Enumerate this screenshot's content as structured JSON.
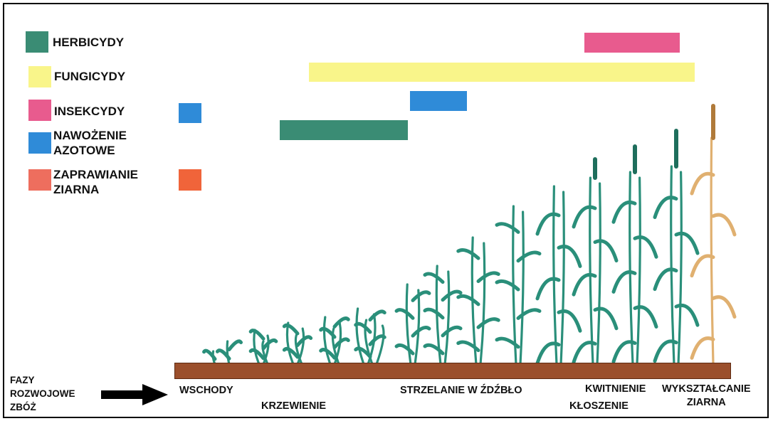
{
  "legend": [
    {
      "label": "HERBICYDY",
      "color": "#3a8c74"
    },
    {
      "label": "FUNGICYDY",
      "color": "#f9f58a"
    },
    {
      "label": "INSEKCYDY",
      "color": "#e85b8e"
    },
    {
      "label": "NAWOŻENIE\nAZOTOWE",
      "color": "#2f8bd8"
    },
    {
      "label": "ZAPRAWIANIE\nZIARNA",
      "color": "#ee6e5e"
    }
  ],
  "bars": {
    "insecticides": {
      "color": "#e85b8e"
    },
    "fungicides": {
      "color": "#f9f58a"
    },
    "nitrogen_late": {
      "color": "#2f8bd8"
    },
    "nitrogen_early": {
      "color": "#2f8bd8"
    },
    "herbicides": {
      "color": "#3a8c74"
    },
    "seed_dressing": {
      "color": "#f0643a"
    }
  },
  "phases_label": "FAZY\nROZWOJOWE\nZBÓŻ",
  "stages": {
    "wschody": "WSCHODY",
    "krzewienie": "KRZEWIENIE",
    "strzelanie": "STRZELANIE W ŹDŹBŁO",
    "kwitnienie": "KWITNIENIE",
    "kloszenie": "KŁOSZENIE",
    "wyksztalcanie": "WYKSZTAŁCANIE\nZIARNA"
  },
  "colors": {
    "plant_green": "#2a8f7a",
    "plant_dark": "#1e6e5c",
    "ripe_plant": "#e0b070",
    "soil": "#9b4f2c"
  }
}
